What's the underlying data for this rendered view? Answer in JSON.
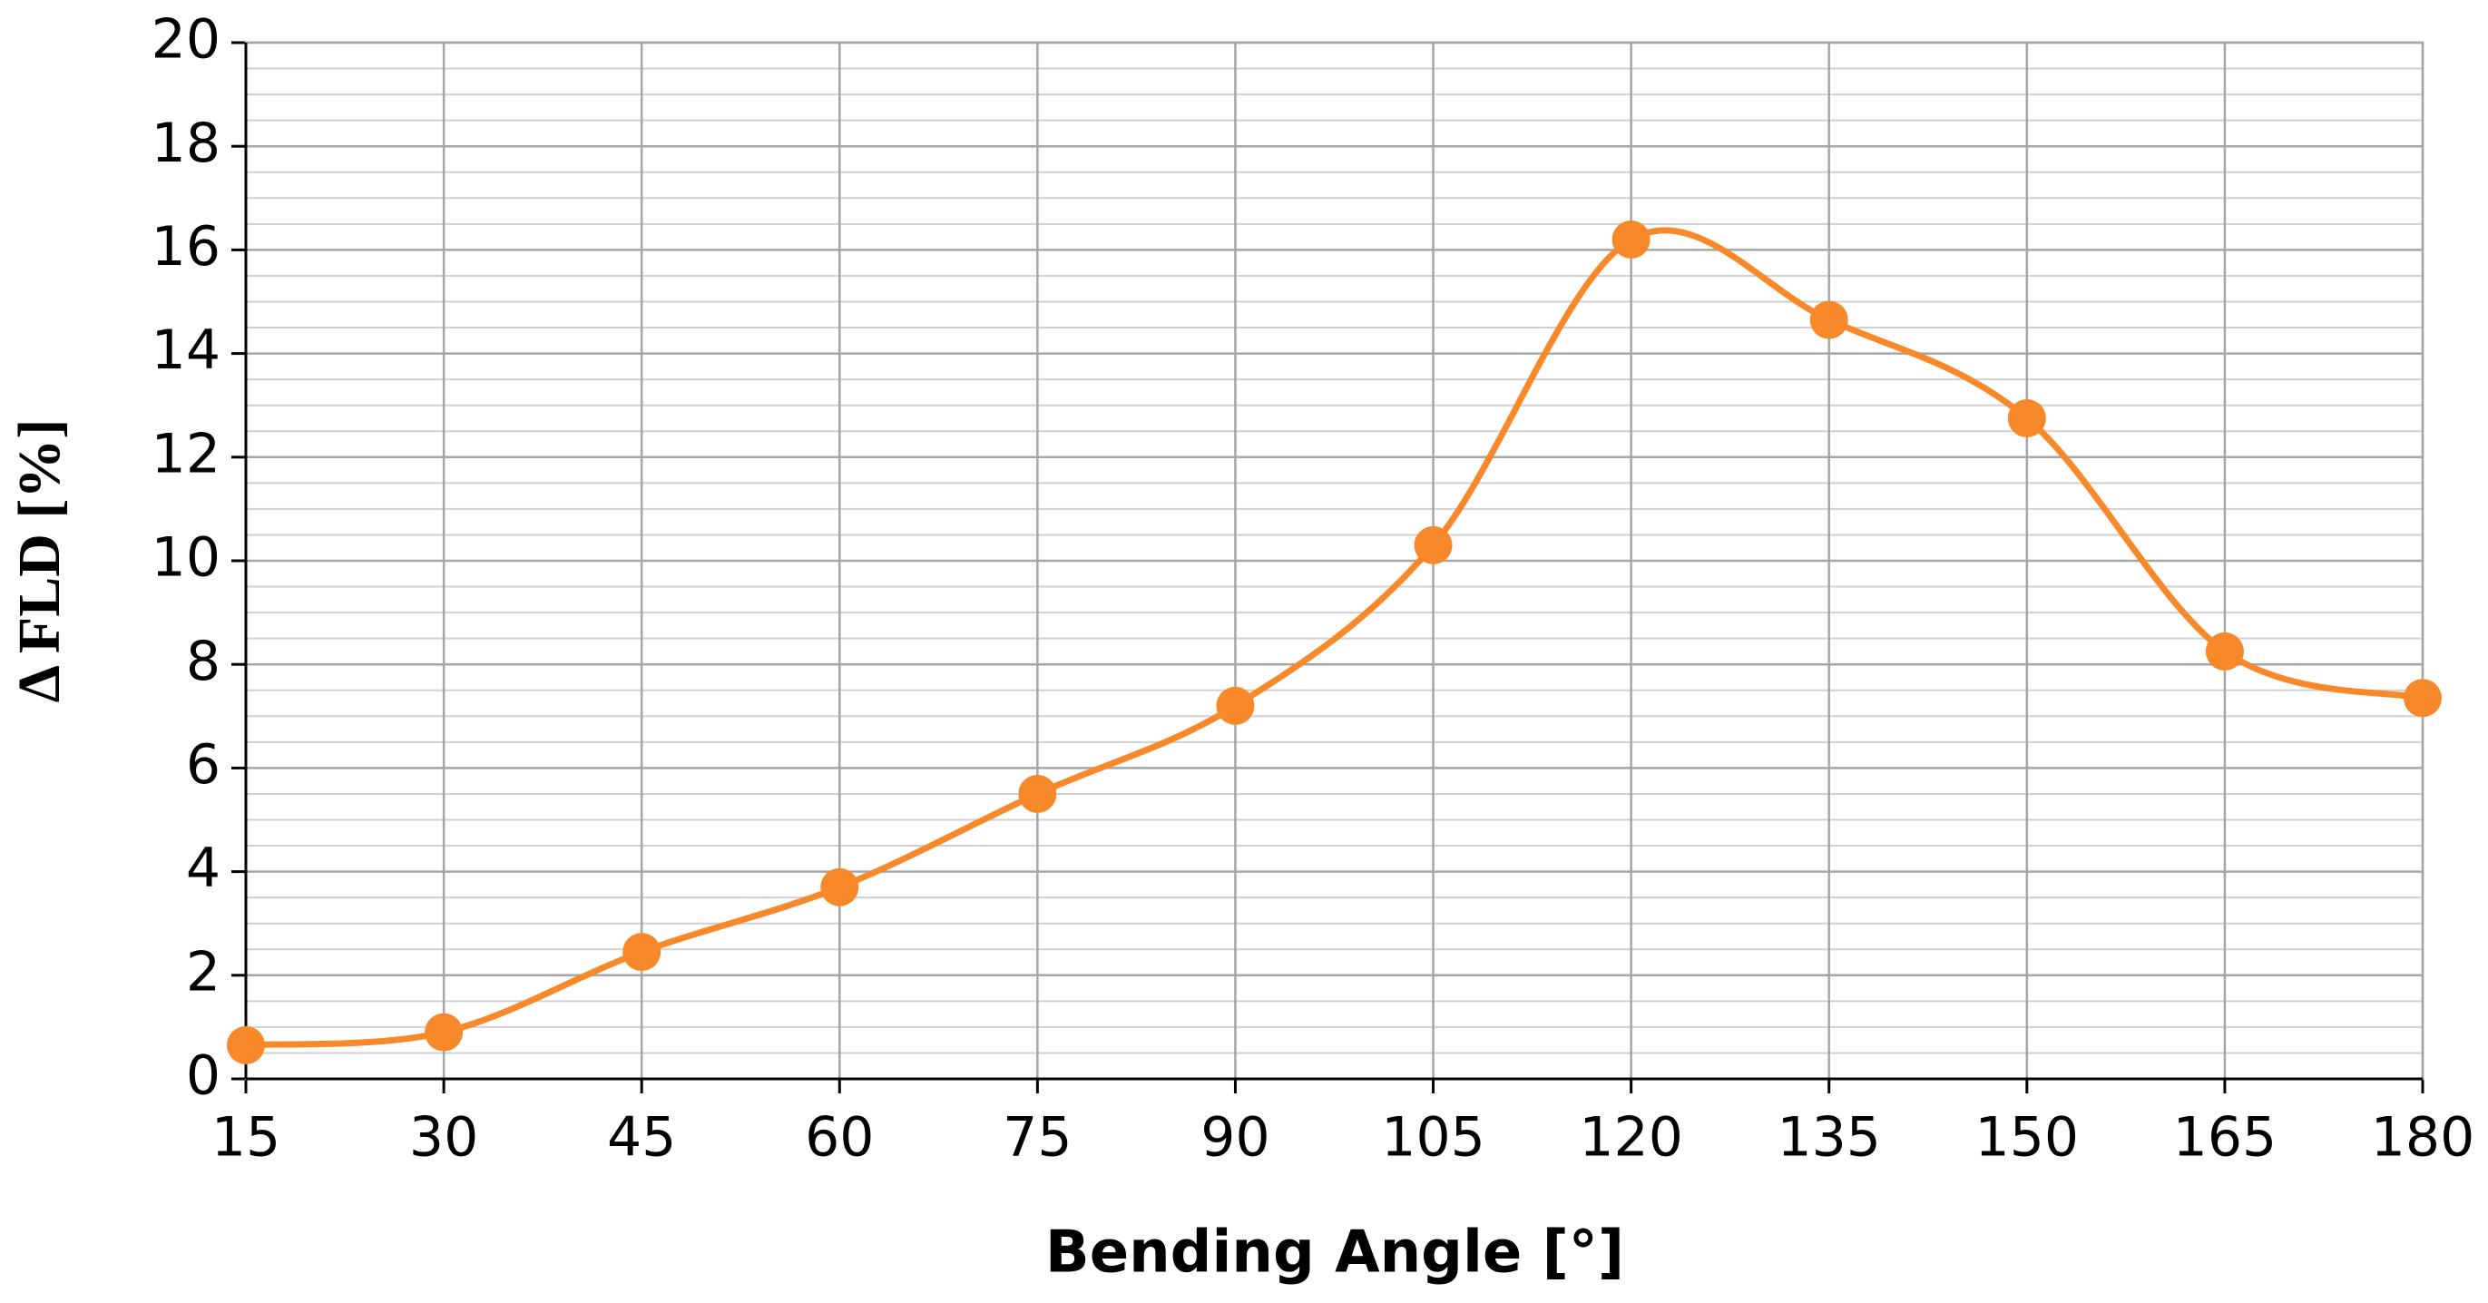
{
  "chart_data": {
    "type": "line",
    "x_label": "Bending Angle [°]",
    "y_label": "Δ FLD [%]",
    "x": [
      15,
      30,
      45,
      60,
      75,
      90,
      105,
      120,
      135,
      150,
      165,
      180
    ],
    "series": [
      {
        "color": "#f7892b",
        "values": [
          0.65,
          0.9,
          2.45,
          3.7,
          5.5,
          7.2,
          10.3,
          16.2,
          14.65,
          12.75,
          8.25,
          7.35
        ]
      }
    ],
    "xlim": [
      15,
      180
    ],
    "xticks": [
      15,
      30,
      45,
      60,
      75,
      90,
      105,
      120,
      135,
      150,
      165,
      180
    ],
    "ylim": [
      0,
      20
    ],
    "yticks": [
      0,
      2,
      4,
      6,
      8,
      10,
      12,
      14,
      16,
      18,
      20
    ],
    "grid": true,
    "minor_grid": true,
    "smooth": true
  }
}
